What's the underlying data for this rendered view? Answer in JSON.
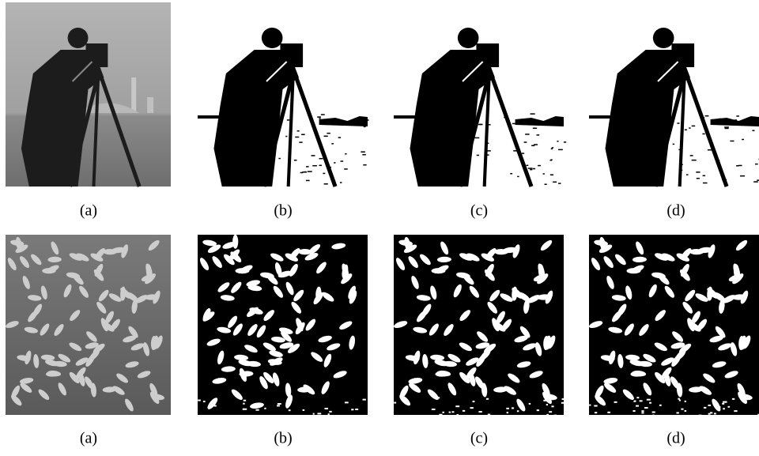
{
  "rows": [
    {
      "captions": [
        "(a)",
        "(b)",
        "(c)",
        "(d)"
      ]
    },
    {
      "captions": [
        "(a)",
        "(b)",
        "(c)",
        "(d)"
      ]
    }
  ]
}
